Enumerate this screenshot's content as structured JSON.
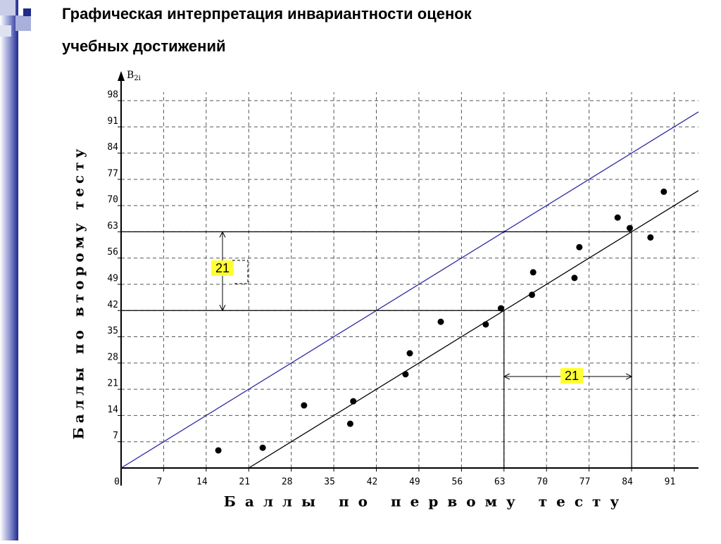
{
  "header": {
    "title_line1": "Графическая интерпретация инвариантности оценок",
    "title_line2": "учебных достижений"
  },
  "chart_data": {
    "type": "scatter",
    "x_label": "Баллы по первому тесту",
    "y_label": "Баллы по второму тесту",
    "y_symbol": {
      "base": "B",
      "sub": "2i"
    },
    "x": [
      16,
      23.3,
      30.1,
      37.7,
      38.2,
      46.8,
      47.5,
      52.6,
      60,
      62.5,
      67.6,
      67.8,
      74.6,
      75.4,
      81.7,
      83.7,
      87.1,
      89.3
    ],
    "values": [
      4.7,
      5.4,
      16.7,
      11.8,
      17.8,
      25,
      30.6,
      39,
      38.3,
      42.6,
      46.2,
      52.2,
      50.7,
      58.9,
      66.8,
      64,
      61.5,
      73.7
    ],
    "color": "#000000",
    "lines": [
      {
        "slope": 1,
        "intercept": 0,
        "color": "#2a2aa0"
      },
      {
        "slope": 1,
        "intercept": -21,
        "color": "#000000"
      }
    ],
    "guides": [
      {
        "x": 63,
        "y": 42
      },
      {
        "x": 84,
        "y": 63
      }
    ],
    "shift": 21,
    "xlim": [
      0,
      95
    ],
    "ylim": [
      0,
      104
    ],
    "xticks": [
      0,
      7,
      14,
      21,
      28,
      35,
      42,
      49,
      56,
      63,
      70,
      77,
      84,
      91
    ],
    "yticks": [
      7,
      14,
      21,
      28,
      35,
      42,
      49,
      56,
      63,
      70,
      77,
      84,
      91,
      98
    ],
    "grid": true
  }
}
